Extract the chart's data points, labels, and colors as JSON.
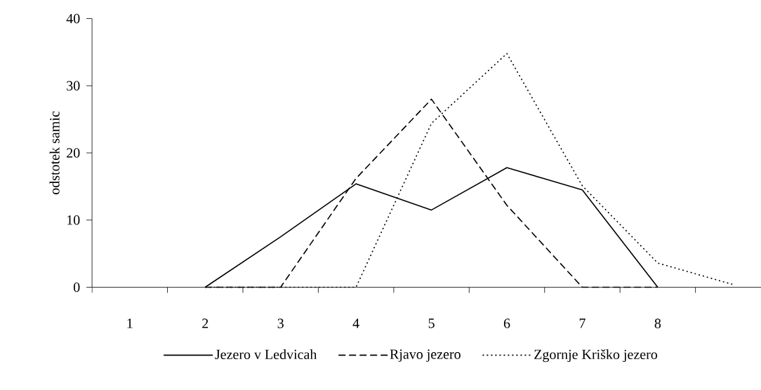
{
  "chart_data": {
    "type": "line",
    "ylabel": "odstotek samic",
    "categories": [
      "1",
      "2",
      "3",
      "4",
      "5",
      "6",
      "7",
      "8",
      null
    ],
    "series": [
      {
        "name": "Jezero v Ledvicah",
        "color": "#000000",
        "line_style": "solid",
        "values": [
          null,
          0,
          7.5,
          15.4,
          11.5,
          17.8,
          14.5,
          0,
          null
        ]
      },
      {
        "name": "Rjavo jezero",
        "color": "#000000",
        "line_style": "dashed",
        "values": [
          null,
          0,
          0,
          16.2,
          28.0,
          12.2,
          0,
          0,
          null
        ]
      },
      {
        "name": "Zgornje Kriško jezero",
        "color": "#000000",
        "line_style": "dotted",
        "values": [
          null,
          0,
          0,
          0,
          24.4,
          34.8,
          15.1,
          3.6,
          0.4
        ]
      }
    ],
    "ylim": [
      0,
      40
    ],
    "yticks": [
      0,
      10,
      20,
      30,
      40
    ],
    "grid": false,
    "legend": "bottom",
    "marker": "none"
  }
}
